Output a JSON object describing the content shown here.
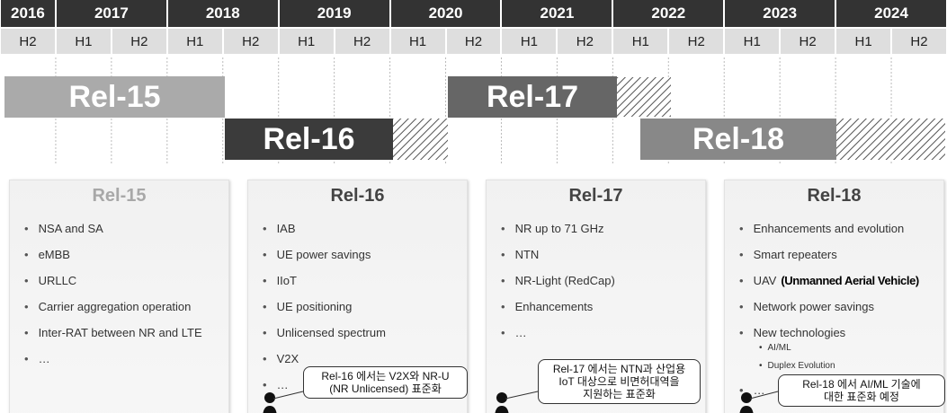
{
  "timeline": {
    "years": [
      "2016",
      "2017",
      "2018",
      "2019",
      "2020",
      "2021",
      "2022",
      "2023",
      "2024"
    ],
    "halves": [
      "H2",
      "H1",
      "H2",
      "H1",
      "H2",
      "H1",
      "H2",
      "H1",
      "H2",
      "H1",
      "H2",
      "H1",
      "H2",
      "H1",
      "H2",
      "H1",
      "H2"
    ],
    "bars": [
      "Rel-15",
      "Rel-16",
      "Rel-17",
      "Rel-18"
    ]
  },
  "cards": [
    {
      "title": "Rel-15",
      "items": [
        "NSA and SA",
        "eMBB",
        "URLLC",
        "Carrier aggregation operation",
        "Inter-RAT between NR and LTE",
        "…"
      ]
    },
    {
      "title": "Rel-16",
      "items": [
        "IAB",
        "UE power savings",
        "IIoT",
        "UE positioning",
        "Unlicensed spectrum",
        "V2X",
        "…"
      ],
      "callout": [
        "Rel-16 에서는 V2X와 NR-U",
        "(NR Unlicensed) 표준화"
      ]
    },
    {
      "title": "Rel-17",
      "items": [
        "NR up to 71 GHz",
        "NTN",
        "NR-Light (RedCap)",
        "Enhancements",
        "…"
      ],
      "callout": [
        "Rel-17 에서는 NTN과  산업용",
        "IoT 대상으로 비면허대역을",
        "지원하는 표준화"
      ]
    },
    {
      "title": "Rel-18",
      "items": [
        "Enhancements and evolution",
        "Smart repeaters",
        "UAV",
        "Network power savings",
        "New technologies",
        "…"
      ],
      "item_note": "(Unmanned Aerial Vehicle)",
      "sub_items": [
        "AI/ML",
        "Duplex Evolution"
      ],
      "callout": [
        "Rel-18 에서 AI/ML 기술에",
        "대한 표준화 예정"
      ]
    }
  ]
}
